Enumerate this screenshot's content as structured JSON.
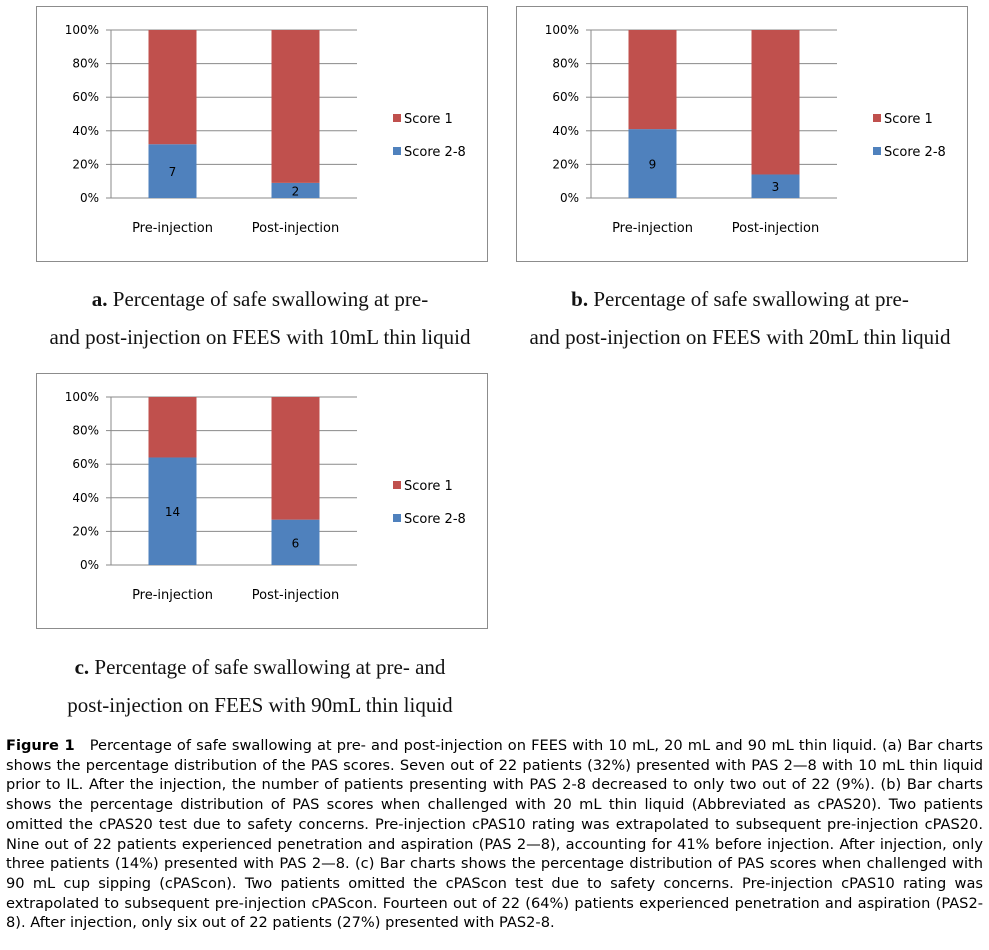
{
  "chart_data": [
    {
      "type": "bar",
      "stacked": true,
      "categories": [
        "Pre-injection",
        "Post-injection"
      ],
      "series": [
        {
          "name": "Score 2-8",
          "values": [
            32,
            9
          ],
          "labels": [
            "7",
            "2"
          ],
          "color": "#4f81bd"
        },
        {
          "name": "Score 1",
          "values": [
            68,
            91
          ],
          "color": "#c0504d"
        }
      ],
      "ylim": [
        0,
        100
      ],
      "yticks": [
        "0%",
        "20%",
        "40%",
        "60%",
        "80%",
        "100%"
      ],
      "grid": true,
      "legend": "right",
      "caption_lead": "a.",
      "caption_line1": " Percentage of safe swallowing at pre-",
      "caption_line2": "and post-injection on FEES with 10mL thin liquid"
    },
    {
      "type": "bar",
      "stacked": true,
      "categories": [
        "Pre-injection",
        "Post-injection"
      ],
      "series": [
        {
          "name": "Score 2-8",
          "values": [
            41,
            14
          ],
          "labels": [
            "9",
            "3"
          ],
          "color": "#4f81bd"
        },
        {
          "name": "Score 1",
          "values": [
            59,
            86
          ],
          "color": "#c0504d"
        }
      ],
      "ylim": [
        0,
        100
      ],
      "yticks": [
        "0%",
        "20%",
        "40%",
        "60%",
        "80%",
        "100%"
      ],
      "grid": true,
      "legend": "right",
      "caption_lead": "b.",
      "caption_line1": " Percentage of safe swallowing at pre-",
      "caption_line2": "and post-injection on FEES with 20mL thin liquid"
    },
    {
      "type": "bar",
      "stacked": true,
      "categories": [
        "Pre-injection",
        "Post-injection"
      ],
      "series": [
        {
          "name": "Score 2-8",
          "values": [
            64,
            27
          ],
          "labels": [
            "14",
            "6"
          ],
          "color": "#4f81bd"
        },
        {
          "name": "Score 1",
          "values": [
            36,
            73
          ],
          "color": "#c0504d"
        }
      ],
      "ylim": [
        0,
        100
      ],
      "yticks": [
        "0%",
        "20%",
        "40%",
        "60%",
        "80%",
        "100%"
      ],
      "grid": true,
      "legend": "right",
      "caption_lead": "c.",
      "caption_line1": " Percentage of safe swallowing at pre- and",
      "caption_line2": "post-injection on FEES with 90mL thin liquid"
    }
  ],
  "figure_caption": {
    "label": "Figure 1",
    "text": "Percentage of safe swallowing at pre- and post-injection on FEES with 10 mL, 20 mL and 90 mL thin liquid. (a) Bar charts shows the percentage distribution of the PAS scores. Seven out of 22 patients (32%) presented with PAS 2—8 with 10 mL thin liquid prior to IL. After the injection, the number of patients presenting with PAS 2-8 decreased to only two out of 22 (9%). (b) Bar charts shows the percentage distribution of PAS scores when challenged with 20 mL thin liquid (Abbreviated as cPAS20). Two patients omitted the cPAS20 test due to safety concerns. Pre-injection cPAS10 rating was extrapolated to subsequent pre-injection cPAS20. Nine out of 22 patients experienced penetration and aspiration (PAS 2—8), accounting for 41% before injection. After injection, only three patients (14%) presented with PAS 2—8. (c) Bar charts shows the percentage distribution of PAS scores when challenged with 90 mL cup sipping (cPAScon). Two patients omitted the cPAScon test due to safety concerns. Pre-injection cPAS10 rating was extrapolated to subsequent pre-injection cPAScon. Fourteen out of 22 (64%) patients experienced penetration and aspiration (PAS2-8). After injection, only six out of 22 patients (27%) presented with PAS2-8."
  }
}
